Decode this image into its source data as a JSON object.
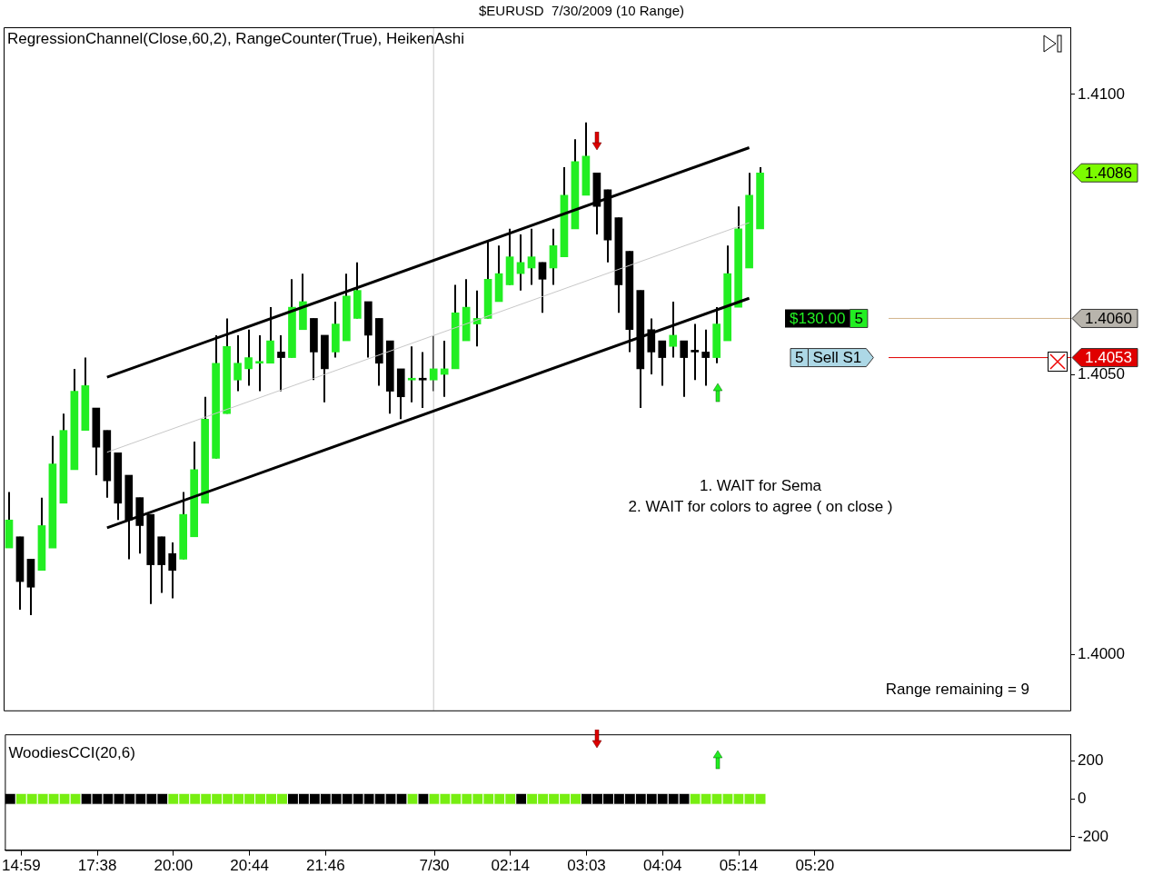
{
  "chart_data": [
    {
      "type": "candlestick",
      "title": "$EURUSD  7/30/2009 (10 Range)",
      "categories": [
        null,
        "14:59",
        null,
        null,
        null,
        null,
        null,
        null,
        "17:38",
        null,
        null,
        null,
        null,
        null,
        null,
        "20:00",
        null,
        null,
        null,
        null,
        null,
        null,
        "20:44",
        null,
        null,
        null,
        null,
        null,
        null,
        "21:46",
        null,
        null,
        null,
        null,
        null,
        null,
        null,
        null,
        null,
        "7/30",
        null,
        null,
        null,
        null,
        null,
        null,
        "02:14",
        null,
        null,
        null,
        null,
        null,
        null,
        "03:03",
        null,
        null,
        null,
        null,
        null,
        null,
        "04:04",
        null,
        null,
        null,
        null,
        null,
        null,
        "05:14",
        null,
        null,
        null,
        null,
        null,
        null,
        "05:20",
        null,
        null,
        null,
        null,
        null,
        null,
        null,
        null,
        null,
        null,
        null,
        null,
        null,
        null,
        null,
        null,
        null,
        null,
        null,
        null,
        null,
        null,
        null
      ],
      "ohlc": [
        [
          1.4019,
          1.4029,
          1.4019,
          1.4024
        ],
        [
          1.4021,
          1.4021,
          1.4008,
          1.4013
        ],
        [
          1.4017,
          1.4017,
          1.4007,
          1.4012
        ],
        [
          1.4015,
          1.4028,
          1.4015,
          1.4023
        ],
        [
          1.4019,
          1.4039,
          1.4019,
          1.4034
        ],
        [
          1.4027,
          1.4043,
          1.4027,
          1.404
        ],
        [
          1.4033,
          1.4051,
          1.4033,
          1.4047
        ],
        [
          1.404,
          1.4053,
          1.404,
          1.4048
        ],
        [
          1.4044,
          1.4044,
          1.4032,
          1.4037
        ],
        [
          1.404,
          1.404,
          1.4028,
          1.4031
        ],
        [
          1.4036,
          1.4036,
          1.4024,
          1.4027
        ],
        [
          1.4032,
          1.4032,
          1.4017,
          1.4024
        ],
        [
          1.4028,
          1.4028,
          1.4018,
          1.4023
        ],
        [
          1.4025,
          1.4025,
          1.4009,
          1.4016
        ],
        [
          1.4021,
          1.4021,
          1.4011,
          1.4016
        ],
        [
          1.4018,
          1.402,
          1.401,
          1.4015
        ],
        [
          1.4017,
          1.4029,
          1.4017,
          1.4025
        ],
        [
          1.4021,
          1.4038,
          1.4021,
          1.4033
        ],
        [
          1.4027,
          1.4046,
          1.4027,
          1.4042
        ],
        [
          1.4035,
          1.4057,
          1.4035,
          1.4052
        ],
        [
          1.4043,
          1.406,
          1.4043,
          1.4055
        ],
        [
          1.4049,
          1.4057,
          1.4047,
          1.4052
        ],
        [
          1.4051,
          1.4058,
          1.4048,
          1.4053
        ],
        [
          1.4052,
          1.4057,
          1.4047,
          1.4052
        ],
        [
          1.4052,
          1.4062,
          1.4052,
          1.4056
        ],
        [
          1.4054,
          1.4057,
          1.4047,
          1.4053
        ],
        [
          1.4053,
          1.4067,
          1.4053,
          1.4062
        ],
        [
          1.4058,
          1.4068,
          1.4058,
          1.4063
        ],
        [
          1.406,
          1.406,
          1.4049,
          1.4054
        ],
        [
          1.4057,
          1.4057,
          1.4045,
          1.4051
        ],
        [
          1.4054,
          1.4063,
          1.4053,
          1.4059
        ],
        [
          1.4056,
          1.4068,
          1.4056,
          1.4064
        ],
        [
          1.406,
          1.407,
          1.406,
          1.4065
        ],
        [
          1.4063,
          1.4063,
          1.4053,
          1.4057
        ],
        [
          1.406,
          1.406,
          1.4048,
          1.4052
        ],
        [
          1.4056,
          1.4056,
          1.4043,
          1.4047
        ],
        [
          1.4051,
          1.4051,
          1.4042,
          1.4046
        ],
        [
          1.4049,
          1.4055,
          1.4045,
          1.4049
        ],
        [
          1.4049,
          1.4054,
          1.4044,
          1.4049
        ],
        [
          1.4049,
          1.4057,
          1.4047,
          1.4051
        ],
        [
          1.405,
          1.4056,
          1.4046,
          1.4051
        ],
        [
          1.4051,
          1.4066,
          1.4051,
          1.4061
        ],
        [
          1.4056,
          1.4067,
          1.4056,
          1.4062
        ],
        [
          1.4059,
          1.4065,
          1.4055,
          1.406
        ],
        [
          1.406,
          1.4074,
          1.406,
          1.4067
        ],
        [
          1.4063,
          1.4073,
          1.4063,
          1.4068
        ],
        [
          1.4066,
          1.4076,
          1.4066,
          1.4071
        ],
        [
          1.4068,
          1.4075,
          1.4065,
          1.407
        ],
        [
          1.4069,
          1.4076,
          1.4066,
          1.4071
        ],
        [
          1.407,
          1.407,
          1.4061,
          1.4067
        ],
        [
          1.4069,
          1.4076,
          1.4066,
          1.4073
        ],
        [
          1.4071,
          1.4087,
          1.4071,
          1.4082
        ],
        [
          1.4076,
          1.4092,
          1.4076,
          1.4088
        ],
        [
          1.4082,
          1.4095,
          1.4082,
          1.4089
        ],
        [
          1.4086,
          1.4086,
          1.4075,
          1.408
        ],
        [
          1.4083,
          1.4083,
          1.407,
          1.4074
        ],
        [
          1.4078,
          1.4078,
          1.4061,
          1.4066
        ],
        [
          1.4072,
          1.4072,
          1.4054,
          1.4058
        ],
        [
          1.4065,
          1.4065,
          1.4044,
          1.4051
        ],
        [
          1.4058,
          1.406,
          1.405,
          1.4054
        ],
        [
          1.4056,
          1.4056,
          1.4048,
          1.4053
        ],
        [
          1.4055,
          1.4063,
          1.4053,
          1.4057
        ],
        [
          1.4056,
          1.4056,
          1.4046,
          1.4053
        ],
        [
          1.4054,
          1.4059,
          1.4049,
          1.4054
        ],
        [
          1.4054,
          1.4058,
          1.4048,
          1.4053
        ],
        [
          1.4053,
          1.4062,
          1.4052,
          1.4059
        ],
        [
          1.4056,
          1.4073,
          1.4056,
          1.4068
        ],
        [
          1.4062,
          1.408,
          1.4062,
          1.4076
        ],
        [
          1.4069,
          1.4086,
          1.4069,
          1.4082
        ],
        [
          1.4076,
          1.4087,
          1.4076,
          1.4086
        ],
        null,
        null,
        null,
        null,
        null,
        null,
        null,
        null,
        null,
        null,
        null,
        null,
        null,
        null,
        null,
        null,
        null,
        null,
        null,
        null,
        null,
        null,
        null,
        null,
        null,
        null,
        null,
        null
      ],
      "colors": [
        "#22ee22",
        "#000000",
        "#000000",
        "#22ee22",
        "#22ee22",
        "#22ee22",
        "#22ee22",
        "#22ee22",
        "#000000",
        "#000000",
        "#000000",
        "#000000",
        "#000000",
        "#000000",
        "#000000",
        "#000000",
        "#22ee22",
        "#22ee22",
        "#22ee22",
        "#22ee22",
        "#22ee22",
        "#22ee22",
        "#22ee22",
        "#22ee22",
        "#22ee22",
        "#000000",
        "#22ee22",
        "#22ee22",
        "#000000",
        "#000000",
        "#22ee22",
        "#22ee22",
        "#22ee22",
        "#000000",
        "#000000",
        "#000000",
        "#000000",
        "#22ee22",
        "#000000",
        "#22ee22",
        "#22ee22",
        "#22ee22",
        "#22ee22",
        "#22ee22",
        "#22ee22",
        "#22ee22",
        "#22ee22",
        "#22ee22",
        "#22ee22",
        "#000000",
        "#22ee22",
        "#22ee22",
        "#22ee22",
        "#22ee22",
        "#000000",
        "#000000",
        "#000000",
        "#000000",
        "#000000",
        "#000000",
        "#000000",
        "#22ee22",
        "#000000",
        "#000000",
        "#000000",
        "#22ee22",
        "#22ee22",
        "#22ee22",
        "#22ee22",
        "#22ee22",
        null,
        null,
        null,
        null,
        null,
        null,
        null,
        null,
        null,
        null,
        null,
        null,
        null,
        null,
        null,
        null,
        null,
        null,
        null,
        null,
        null,
        null,
        null,
        null,
        null,
        null,
        null,
        null
      ],
      "series": [
        {
          "type": "line",
          "color": "#000000",
          "values": [
            null,
            null,
            null,
            null,
            null,
            null,
            null,
            null,
            null,
            1.40495,
            null,
            null,
            null,
            null,
            null,
            null,
            null,
            null,
            null,
            null,
            null,
            null,
            null,
            null,
            null,
            null,
            null,
            null,
            null,
            null,
            null,
            null,
            null,
            null,
            null,
            null,
            null,
            null,
            null,
            null,
            null,
            null,
            null,
            null,
            null,
            null,
            null,
            null,
            null,
            null,
            null,
            null,
            null,
            null,
            null,
            null,
            null,
            null,
            null,
            null,
            null,
            null,
            null,
            null,
            null,
            null,
            null,
            null,
            1.40905,
            null,
            null,
            null,
            null,
            null,
            null,
            null,
            null,
            null,
            null,
            null,
            null,
            null,
            null,
            null,
            null,
            null,
            null,
            null,
            null,
            null,
            null,
            null,
            null,
            null,
            null,
            null,
            null,
            null
          ]
        },
        {
          "type": "line",
          "color": "#c8c8c8",
          "values": [
            null,
            null,
            null,
            null,
            null,
            null,
            null,
            null,
            null,
            1.40361,
            null,
            null,
            null,
            null,
            null,
            null,
            null,
            null,
            null,
            null,
            null,
            null,
            null,
            null,
            null,
            null,
            null,
            null,
            null,
            null,
            null,
            null,
            null,
            null,
            null,
            null,
            null,
            null,
            null,
            null,
            null,
            null,
            null,
            null,
            null,
            null,
            null,
            null,
            null,
            null,
            null,
            null,
            null,
            null,
            null,
            null,
            null,
            null,
            null,
            null,
            null,
            null,
            null,
            null,
            null,
            null,
            null,
            null,
            1.40771,
            null,
            null,
            null,
            null,
            null,
            null,
            null,
            null,
            null,
            null,
            null,
            null,
            null,
            null,
            null,
            null,
            null,
            null,
            null,
            null,
            null,
            null,
            null,
            null,
            null,
            null,
            null,
            null,
            null
          ]
        },
        {
          "type": "line",
          "color": "#000000",
          "values": [
            null,
            null,
            null,
            null,
            null,
            null,
            null,
            null,
            null,
            1.40226,
            null,
            null,
            null,
            null,
            null,
            null,
            null,
            null,
            null,
            null,
            null,
            null,
            null,
            null,
            null,
            null,
            null,
            null,
            null,
            null,
            null,
            null,
            null,
            null,
            null,
            null,
            null,
            null,
            null,
            null,
            null,
            null,
            null,
            null,
            null,
            null,
            null,
            null,
            null,
            null,
            null,
            null,
            null,
            null,
            null,
            null,
            null,
            null,
            null,
            null,
            null,
            null,
            null,
            null,
            null,
            null,
            null,
            null,
            1.40636,
            null,
            null,
            null,
            null,
            null,
            null,
            null,
            null,
            null,
            null,
            null,
            null,
            null,
            null,
            null,
            null,
            null,
            null,
            null,
            null,
            null,
            null,
            null,
            null,
            null,
            null,
            null,
            null,
            null
          ]
        }
      ],
      "ylim": [
        1.399,
        1.4112
      ],
      "yticks": [
        {
          "value": 1.4,
          "label": "1.4000"
        },
        {
          "value": 1.405,
          "label": "1.4050"
        },
        {
          "value": 1.41,
          "label": "1.4100"
        }
      ],
      "ref_lines": [
        {
          "axis": "x",
          "value": "7/30",
          "color": "#c8c8c8"
        },
        {
          "axis": "y",
          "value": 1.406,
          "label": "1.4060",
          "color": "#d2b48c"
        },
        {
          "axis": "y",
          "value": 1.4053,
          "label": "1.4053",
          "color": "#e00000"
        }
      ],
      "annotations": [
        "RegressionChannel(Close,60,2), RangeCounter(True), HeikenAshi",
        "1. WAIT for Sema",
        "2. WAIT for colors to agree ( on close )",
        "Range remaining = 9",
        "$130.00",
        "5",
        "5",
        "Sell S1",
        "1.4086"
      ],
      "tick_labels": "y"
    },
    {
      "type": "scatter",
      "title": "WoodiesCCI(20,6)",
      "categories": [
        null,
        "14:59",
        null,
        null,
        null,
        null,
        null,
        null,
        "17:38",
        null,
        null,
        null,
        null,
        null,
        null,
        "20:00",
        null,
        null,
        null,
        null,
        null,
        null,
        "20:44",
        null,
        null,
        null,
        null,
        null,
        null,
        "21:46",
        null,
        null,
        null,
        null,
        null,
        null,
        null,
        null,
        null,
        "7/30",
        null,
        null,
        null,
        null,
        null,
        null,
        "02:14",
        null,
        null,
        null,
        null,
        null,
        null,
        "03:03",
        null,
        null,
        null,
        null,
        null,
        null,
        "04:04",
        null,
        null,
        null,
        null,
        null,
        null,
        "05:14",
        null,
        null,
        null,
        null,
        null,
        null,
        "05:20",
        null,
        null,
        null,
        null,
        null,
        null,
        null,
        null,
        null,
        null,
        null,
        null,
        null,
        null,
        null,
        null,
        null,
        null,
        null,
        null,
        null,
        null,
        null
      ],
      "series": [
        {
          "values": [
            0,
            0,
            0,
            0,
            0,
            0,
            0,
            0,
            0,
            0,
            0,
            0,
            0,
            0,
            0,
            0,
            0,
            0,
            0,
            0,
            0,
            0,
            0,
            0,
            0,
            0,
            0,
            0,
            0,
            0,
            0,
            0,
            0,
            0,
            0,
            0,
            0,
            0,
            0,
            0,
            0,
            0,
            0,
            0,
            0,
            0,
            0,
            0,
            0,
            0,
            0,
            0,
            0,
            0,
            0,
            0,
            0,
            0,
            0,
            0,
            0,
            0,
            0,
            0,
            0,
            0,
            0,
            0,
            0,
            0,
            null,
            null,
            null,
            null,
            null,
            null,
            null,
            null,
            null,
            null,
            null,
            null,
            null,
            null,
            null,
            null,
            null,
            null,
            null,
            null,
            null,
            null,
            null,
            null,
            null,
            null,
            null,
            null
          ],
          "colors": [
            "#000000",
            "#77ee11",
            "#77ee11",
            "#77ee11",
            "#77ee11",
            "#77ee11",
            "#77ee11",
            "#000000",
            "#000000",
            "#000000",
            "#000000",
            "#000000",
            "#000000",
            "#000000",
            "#000000",
            "#77ee11",
            "#77ee11",
            "#77ee11",
            "#77ee11",
            "#77ee11",
            "#77ee11",
            "#77ee11",
            "#77ee11",
            "#77ee11",
            "#77ee11",
            "#77ee11",
            "#000000",
            "#000000",
            "#000000",
            "#000000",
            "#000000",
            "#000000",
            "#000000",
            "#000000",
            "#000000",
            "#000000",
            "#000000",
            "#77ee11",
            "#000000",
            "#77ee11",
            "#77ee11",
            "#77ee11",
            "#77ee11",
            "#77ee11",
            "#77ee11",
            "#77ee11",
            "#77ee11",
            "#000000",
            "#77ee11",
            "#77ee11",
            "#77ee11",
            "#77ee11",
            "#77ee11",
            "#000000",
            "#000000",
            "#000000",
            "#000000",
            "#000000",
            "#000000",
            "#000000",
            "#000000",
            "#000000",
            "#000000",
            "#77ee11",
            "#77ee11",
            "#77ee11",
            "#77ee11",
            "#77ee11",
            "#77ee11",
            "#77ee11",
            null,
            null,
            null,
            null,
            null,
            null,
            null,
            null,
            null,
            null,
            null,
            null,
            null,
            null,
            null,
            null,
            null,
            null,
            null,
            null,
            null,
            null,
            null,
            null,
            null,
            null,
            null,
            null
          ]
        }
      ],
      "marker": "square",
      "ylim": [
        -270,
        340
      ],
      "yticks": [
        200,
        0,
        -200
      ]
    }
  ]
}
